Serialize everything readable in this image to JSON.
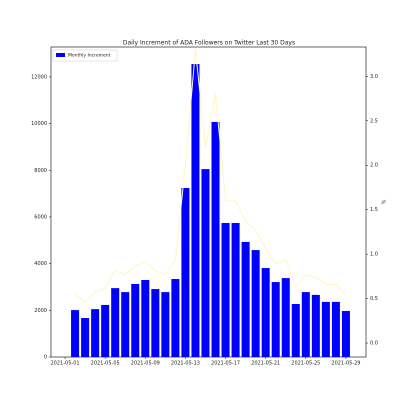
{
  "chart_data": {
    "type": "bar",
    "title": "Daily Increment of ADA Followers on Twitter Last 30 Days",
    "y2label": "%",
    "x": [
      "2021-05-02",
      "2021-05-03",
      "2021-05-04",
      "2021-05-05",
      "2021-05-06",
      "2021-05-07",
      "2021-05-08",
      "2021-05-09",
      "2021-05-10",
      "2021-05-11",
      "2021-05-12",
      "2021-05-13",
      "2021-05-14",
      "2021-05-15",
      "2021-05-16",
      "2021-05-17",
      "2021-05-18",
      "2021-05-19",
      "2021-05-20",
      "2021-05-21",
      "2021-05-22",
      "2021-05-23",
      "2021-05-24",
      "2021-05-25",
      "2021-05-26",
      "2021-05-27",
      "2021-05-28",
      "2021-05-29"
    ],
    "series": [
      {
        "name": "Monthly Increment",
        "color": "#0000ff",
        "values": [
          2010,
          1670,
          2050,
          2230,
          2950,
          2780,
          3130,
          3300,
          2910,
          2780,
          3340,
          7240,
          12550,
          8050,
          10070,
          5740,
          5740,
          4930,
          4580,
          3810,
          3210,
          3380,
          2270,
          2780,
          2660,
          2360,
          2360,
          1970
        ]
      },
      {
        "color": "#fff6c2",
        "axis": "y2",
        "values": [
          0.56,
          0.46,
          0.57,
          0.62,
          0.82,
          0.77,
          0.87,
          0.92,
          0.81,
          0.77,
          0.93,
          2.0,
          3.3,
          2.2,
          2.8,
          1.6,
          1.6,
          1.37,
          1.27,
          1.06,
          0.89,
          0.94,
          0.63,
          0.77,
          0.74,
          0.66,
          0.66,
          0.55
        ]
      }
    ],
    "xticks": [
      "2021-05-01",
      "2021-05-05",
      "2021-05-09",
      "2021-05-13",
      "2021-05-17",
      "2021-05-21",
      "2021-05-25",
      "2021-05-29"
    ],
    "ylim": [
      0,
      13280
    ],
    "yticks": [
      0,
      2000,
      4000,
      6000,
      8000,
      10000,
      12000
    ],
    "y2lim": [
      -0.157,
      3.33
    ],
    "y2ticks": [
      {
        "value": 0,
        "label": "0.0"
      },
      0.5,
      {
        "value": 1,
        "label": "1.0"
      },
      1.5,
      {
        "value": 2,
        "label": "2.0"
      },
      2.5,
      {
        "value": 3,
        "label": "3.0"
      }
    ],
    "legend": "upper left"
  }
}
